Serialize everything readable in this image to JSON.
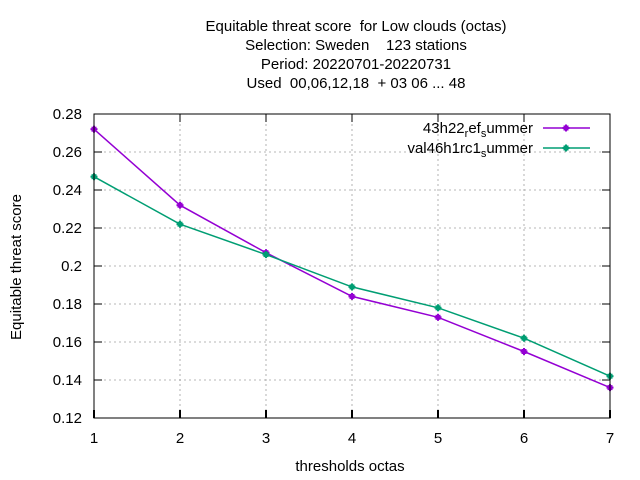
{
  "chart_data": {
    "type": "line",
    "title_lines": [
      "Equitable threat score  for Low clouds (octas)",
      "Selection: Sweden    123 stations",
      "Period: 20220701-20220731",
      "Used  00,06,12,18  + 03 06 ... 48"
    ],
    "xlabel": "thresholds octas",
    "ylabel": "Equitable threat score",
    "x": [
      1,
      2,
      3,
      4,
      5,
      6,
      7
    ],
    "xlim": [
      1,
      7
    ],
    "ylim": [
      0.12,
      0.28
    ],
    "xticks": [
      "1",
      "2",
      "3",
      "4",
      "5",
      "6",
      "7"
    ],
    "yticks": [
      "0.12",
      "0.14",
      "0.16",
      "0.18",
      "0.2",
      "0.22",
      "0.24",
      "0.26",
      "0.28"
    ],
    "grid": true,
    "legend_position": "top-right",
    "series": [
      {
        "name": "43h22_ref_summer",
        "legend_parts": {
          "a": "43h22",
          "sub1": "r",
          "b": "ef",
          "sub2": "s",
          "c": "ummer"
        },
        "color": "#9400d3",
        "values": [
          0.272,
          0.232,
          0.207,
          0.184,
          0.173,
          0.155,
          0.136
        ]
      },
      {
        "name": "val46h1rc1_summer",
        "legend_parts": {
          "a": "val46h1rc1",
          "sub1": "",
          "b": "",
          "sub2": "s",
          "c": "ummer"
        },
        "color": "#009e73",
        "values": [
          0.247,
          0.222,
          0.206,
          0.189,
          0.178,
          0.162,
          0.142
        ]
      }
    ]
  }
}
